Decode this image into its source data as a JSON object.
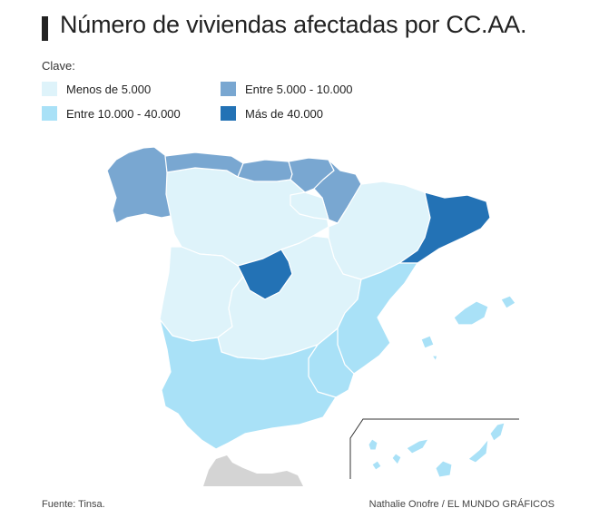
{
  "title": "Número de viviendas afectadas por CC.AA.",
  "legend": {
    "title": "Clave:",
    "items": [
      {
        "label": "Menos de 5.000",
        "color": "#def3fa"
      },
      {
        "label": "Entre 5.000 - 10.000",
        "color": "#79a7d1"
      },
      {
        "label": "Entre 10.000 - 40.000",
        "color": "#a9e1f7"
      },
      {
        "label": "Más de 40.000",
        "color": "#2372b5"
      }
    ]
  },
  "regions": [
    {
      "name": "Galicia",
      "category": 1
    },
    {
      "name": "Asturias",
      "category": 1
    },
    {
      "name": "Cantabria",
      "category": 1
    },
    {
      "name": "País Vasco",
      "category": 1
    },
    {
      "name": "Navarra",
      "category": 1
    },
    {
      "name": "Aragón",
      "category": 0
    },
    {
      "name": "Cataluña",
      "category": 3
    },
    {
      "name": "Castilla y León",
      "category": 0
    },
    {
      "name": "La Rioja",
      "category": 0
    },
    {
      "name": "Madrid",
      "category": 3
    },
    {
      "name": "Castilla-La Mancha",
      "category": 0
    },
    {
      "name": "Extremadura",
      "category": 0
    },
    {
      "name": "Comunidad Valenciana",
      "category": 2
    },
    {
      "name": "Murcia",
      "category": 2
    },
    {
      "name": "Andalucía",
      "category": 2
    },
    {
      "name": "Islas Baleares",
      "category": 2
    },
    {
      "name": "Canarias",
      "category": 2
    }
  ],
  "footer": {
    "source": "Fuente: Tinsa.",
    "credit": "Nathalie Onofre / EL MUNDO GRÁFICOS"
  }
}
